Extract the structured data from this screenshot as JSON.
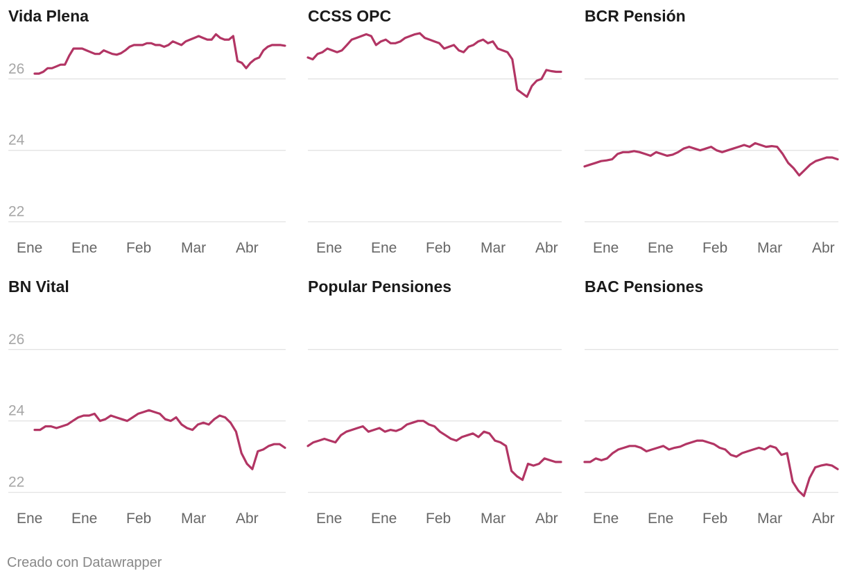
{
  "footer": "Creado con Datawrapper",
  "colors": {
    "line": "#b23564",
    "grid": "#e0e0e0",
    "axis_text": "#a6a6a6",
    "xtick_text": "#666666"
  },
  "chart_data": [
    {
      "type": "line",
      "title": "Vida Plena",
      "ylim": [
        21.8,
        27.2
      ],
      "yticks": [
        22,
        24,
        26
      ],
      "x_tick_labels": [
        "Ene",
        "Ene",
        "Feb",
        "Mar",
        "Abr"
      ],
      "grid": true,
      "series": [
        {
          "values": [
            26.15,
            26.15,
            26.2,
            26.3,
            26.3,
            26.35,
            26.4,
            26.4,
            26.65,
            26.85,
            26.85,
            26.85,
            26.8,
            26.75,
            26.7,
            26.7,
            26.8,
            26.75,
            26.7,
            26.68,
            26.72,
            26.8,
            26.9,
            26.95,
            26.95,
            26.95,
            27.0,
            27.0,
            26.95,
            26.95,
            26.9,
            26.95,
            27.05,
            27.0,
            26.95,
            27.05,
            27.1,
            27.15,
            27.2,
            27.15,
            27.1,
            27.1,
            27.25,
            27.15,
            27.1,
            27.1,
            27.2,
            26.5,
            26.45,
            26.3,
            26.45,
            26.55,
            26.6,
            26.8,
            26.9,
            26.95,
            26.95,
            26.95,
            26.93
          ]
        }
      ]
    },
    {
      "type": "line",
      "title": "CCSS OPC",
      "ylim": [
        21.8,
        27.2
      ],
      "yticks": [
        22,
        24,
        26
      ],
      "x_tick_labels": [
        "Ene",
        "Ene",
        "Feb",
        "Mar",
        "Abr"
      ],
      "grid": true,
      "series": [
        {
          "values": [
            26.6,
            26.55,
            26.7,
            26.75,
            26.85,
            26.8,
            26.75,
            26.8,
            26.95,
            27.1,
            27.15,
            27.2,
            27.25,
            27.2,
            26.95,
            27.05,
            27.1,
            27.0,
            27.0,
            27.05,
            27.15,
            27.2,
            27.25,
            27.28,
            27.15,
            27.1,
            27.05,
            27.0,
            26.85,
            26.9,
            26.95,
            26.8,
            26.75,
            26.9,
            26.95,
            27.05,
            27.1,
            27.0,
            27.05,
            26.85,
            26.8,
            26.75,
            26.55,
            25.7,
            25.6,
            25.5,
            25.8,
            25.95,
            26.0,
            26.25,
            26.22,
            26.2,
            26.2
          ]
        }
      ]
    },
    {
      "type": "line",
      "title": "BCR Pensión",
      "ylim": [
        21.8,
        27.2
      ],
      "yticks": [
        22,
        24,
        26
      ],
      "x_tick_labels": [
        "Ene",
        "Ene",
        "Feb",
        "Mar",
        "Abr"
      ],
      "grid": true,
      "series": [
        {
          "values": [
            23.55,
            23.6,
            23.65,
            23.7,
            23.72,
            23.75,
            23.9,
            23.95,
            23.95,
            23.98,
            23.95,
            23.9,
            23.85,
            23.95,
            23.9,
            23.85,
            23.88,
            23.95,
            24.05,
            24.1,
            24.05,
            24.0,
            24.05,
            24.1,
            24.0,
            23.95,
            24.0,
            24.05,
            24.1,
            24.15,
            24.1,
            24.2,
            24.15,
            24.1,
            24.12,
            24.1,
            23.9,
            23.65,
            23.5,
            23.3,
            23.45,
            23.6,
            23.7,
            23.75,
            23.8,
            23.8,
            23.75
          ]
        }
      ]
    },
    {
      "type": "line",
      "title": "BN Vital",
      "ylim": [
        21.8,
        27.2
      ],
      "yticks": [
        22,
        24,
        26
      ],
      "x_tick_labels": [
        "Ene",
        "Ene",
        "Feb",
        "Mar",
        "Abr"
      ],
      "grid": true,
      "series": [
        {
          "values": [
            23.75,
            23.75,
            23.85,
            23.85,
            23.8,
            23.85,
            23.9,
            24.0,
            24.1,
            24.15,
            24.15,
            24.2,
            24.0,
            24.05,
            24.15,
            24.1,
            24.05,
            24.0,
            24.1,
            24.2,
            24.25,
            24.3,
            24.25,
            24.2,
            24.05,
            24.0,
            24.1,
            23.9,
            23.8,
            23.75,
            23.9,
            23.95,
            23.9,
            24.05,
            24.15,
            24.1,
            23.95,
            23.7,
            23.1,
            22.8,
            22.65,
            23.15,
            23.2,
            23.3,
            23.35,
            23.35,
            23.25
          ]
        }
      ]
    },
    {
      "type": "line",
      "title": "Popular Pensiones",
      "ylim": [
        21.8,
        27.2
      ],
      "yticks": [
        22,
        24,
        26
      ],
      "x_tick_labels": [
        "Ene",
        "Ene",
        "Feb",
        "Mar",
        "Abr"
      ],
      "grid": true,
      "series": [
        {
          "values": [
            23.3,
            23.4,
            23.45,
            23.5,
            23.45,
            23.4,
            23.6,
            23.7,
            23.75,
            23.8,
            23.85,
            23.7,
            23.75,
            23.8,
            23.7,
            23.75,
            23.72,
            23.78,
            23.9,
            23.95,
            24.0,
            24.0,
            23.9,
            23.85,
            23.7,
            23.6,
            23.5,
            23.45,
            23.55,
            23.6,
            23.65,
            23.55,
            23.7,
            23.65,
            23.45,
            23.4,
            23.3,
            22.6,
            22.45,
            22.35,
            22.8,
            22.75,
            22.8,
            22.95,
            22.9,
            22.85,
            22.85
          ]
        }
      ]
    },
    {
      "type": "line",
      "title": "BAC Pensiones",
      "ylim": [
        21.8,
        27.2
      ],
      "yticks": [
        22,
        24,
        26
      ],
      "x_tick_labels": [
        "Ene",
        "Ene",
        "Feb",
        "Mar",
        "Abr"
      ],
      "grid": true,
      "series": [
        {
          "values": [
            22.85,
            22.85,
            22.95,
            22.9,
            22.95,
            23.1,
            23.2,
            23.25,
            23.3,
            23.3,
            23.25,
            23.15,
            23.2,
            23.25,
            23.3,
            23.2,
            23.25,
            23.28,
            23.35,
            23.4,
            23.45,
            23.45,
            23.4,
            23.35,
            23.25,
            23.2,
            23.05,
            23.0,
            23.1,
            23.15,
            23.2,
            23.25,
            23.2,
            23.3,
            23.25,
            23.05,
            23.1,
            22.3,
            22.05,
            21.9,
            22.4,
            22.7,
            22.75,
            22.78,
            22.75,
            22.65
          ]
        }
      ]
    }
  ]
}
